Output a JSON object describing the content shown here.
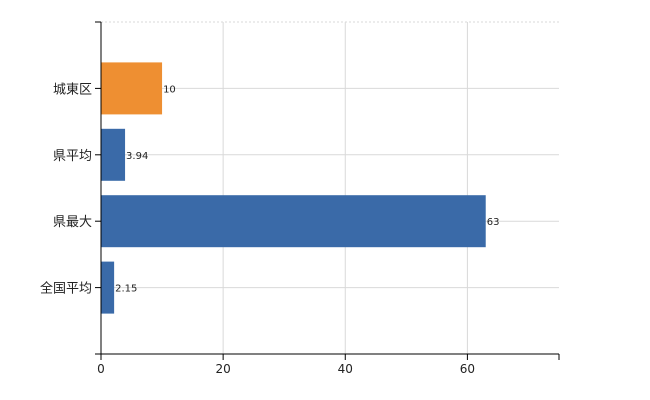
{
  "chart_data": {
    "type": "bar",
    "orientation": "horizontal",
    "categories": [
      "城東区",
      "県平均",
      "県最大",
      "全国平均"
    ],
    "values": [
      10,
      3.94,
      63,
      2.15
    ],
    "data_labels": [
      "10",
      "3.94",
      "63",
      "2.15"
    ],
    "colors": [
      "#ee8f32",
      "#3a6aa8",
      "#3a6aa8",
      "#3a6aa8"
    ],
    "xlim": [
      0,
      75
    ],
    "x_ticks": [
      0,
      20,
      40,
      60
    ],
    "grid": true,
    "title": "",
    "xlabel": "",
    "ylabel": ""
  }
}
